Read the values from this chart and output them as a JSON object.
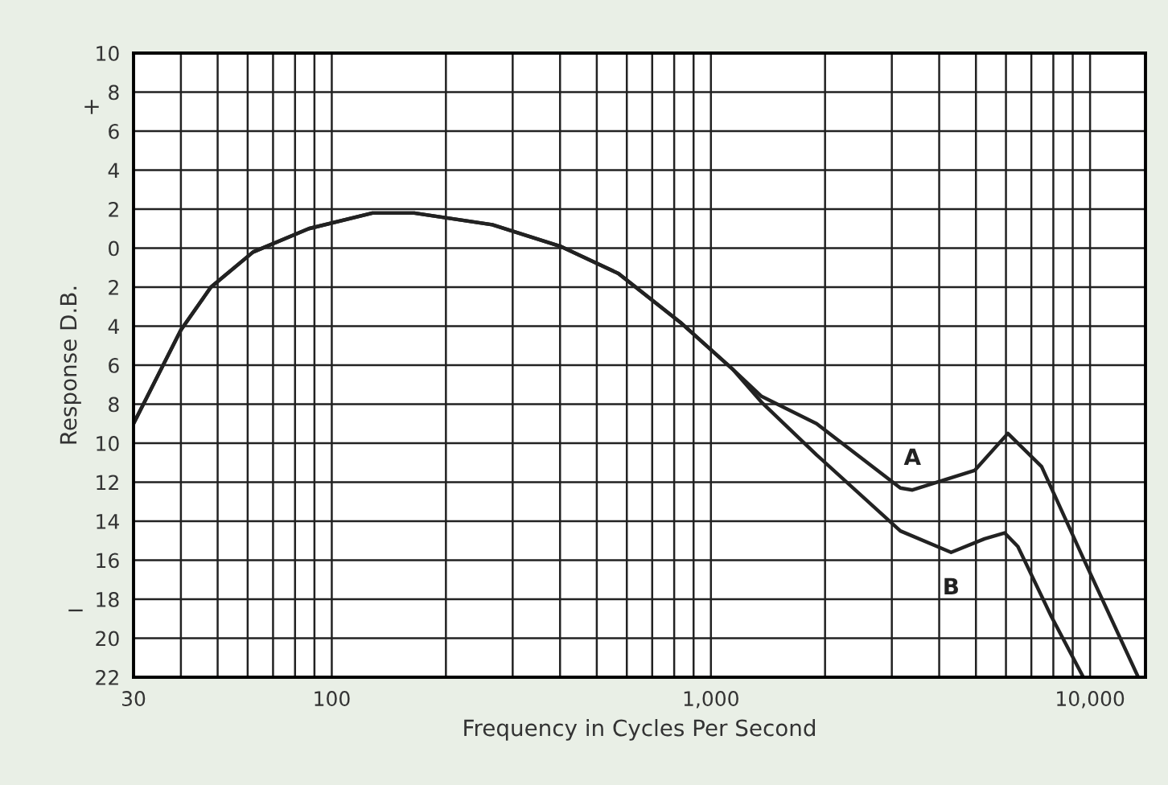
{
  "chart_data": {
    "type": "line",
    "xlabel": "Frequency in Cycles Per Second",
    "ylabel": "Response D.B.",
    "log": "x",
    "grid": true,
    "marker": "none",
    "line_style": "solid",
    "legend": false,
    "xlim": [
      30,
      14000
    ],
    "ylim": [
      -22,
      10
    ],
    "xticks": [
      30,
      {
        "value": 40,
        "label": null
      },
      {
        "value": 50,
        "label": null
      },
      {
        "value": 60,
        "label": null
      },
      {
        "value": 70,
        "label": null
      },
      {
        "value": 80,
        "label": null
      },
      {
        "value": 90,
        "label": null
      },
      {
        "value": 100,
        "label": "100"
      },
      {
        "value": 200,
        "label": null
      },
      {
        "value": 300,
        "label": null
      },
      {
        "value": 400,
        "label": null
      },
      {
        "value": 500,
        "label": null
      },
      {
        "value": 600,
        "label": null
      },
      {
        "value": 700,
        "label": null
      },
      {
        "value": 800,
        "label": null
      },
      {
        "value": 900,
        "label": null
      },
      {
        "value": 1000,
        "label": "1,000"
      },
      {
        "value": 2000,
        "label": null
      },
      {
        "value": 3000,
        "label": null
      },
      {
        "value": 4000,
        "label": null
      },
      {
        "value": 5000,
        "label": null
      },
      {
        "value": 6000,
        "label": null
      },
      {
        "value": 7000,
        "label": null
      },
      {
        "value": 8000,
        "label": null
      },
      {
        "value": 9000,
        "label": null
      },
      {
        "value": 10000,
        "label": "10,000"
      }
    ],
    "yticks": [
      {
        "value": -22,
        "label": "22"
      },
      {
        "value": -20,
        "label": "20"
      },
      {
        "value": -18,
        "label": "18"
      },
      {
        "value": -16,
        "label": "16"
      },
      {
        "value": -14,
        "label": "14"
      },
      {
        "value": -12,
        "label": "12"
      },
      {
        "value": -10,
        "label": "10"
      },
      {
        "value": -8,
        "label": "8"
      },
      {
        "value": -6,
        "label": "6"
      },
      {
        "value": -4,
        "label": "4"
      },
      {
        "value": -2,
        "label": "2"
      },
      0,
      2,
      4,
      6,
      8,
      10
    ],
    "annotations": [
      "+",
      "−"
    ],
    "series": [
      {
        "name": "A",
        "color": "#222222",
        "x": [
          30,
          40,
          48,
          62,
          87,
          128,
          165,
          265,
          400,
          570,
          830,
          1140,
          1360,
          1900,
          3160,
          3400,
          4960,
          6070,
          7450,
          9700,
          13400
        ],
        "values": [
          -9,
          -4.2,
          -2,
          -0.2,
          1,
          1.8,
          1.8,
          1.2,
          0.1,
          -1.3,
          -3.8,
          -6.2,
          -7.6,
          -9,
          -12.3,
          -12.4,
          -11.4,
          -9.5,
          -11.2,
          -16.1,
          -22
        ]
      },
      {
        "name": "B",
        "color": "#222222",
        "x": [
          30,
          40,
          48,
          62,
          87,
          128,
          165,
          265,
          400,
          570,
          830,
          1140,
          1360,
          1900,
          3160,
          4300,
          5270,
          5950,
          6450,
          7910,
          9600
        ],
        "values": [
          -9,
          -4.2,
          -2,
          -0.2,
          1,
          1.8,
          1.8,
          1.2,
          0.1,
          -1.3,
          -3.8,
          -6.2,
          -7.9,
          -10.6,
          -14.5,
          -15.6,
          -14.9,
          -14.6,
          -15.3,
          -18.9,
          -22
        ]
      }
    ]
  }
}
